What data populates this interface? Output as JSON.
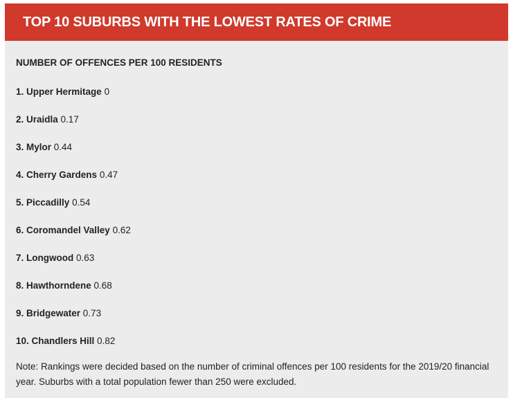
{
  "header": {
    "title": "TOP 10 SUBURBS WITH THE LOWEST RATES OF CRIME"
  },
  "subheading": "NUMBER OF OFFENCES PER 100 RESIDENTS",
  "items": [
    {
      "name": "1. Upper Hermitage",
      "value": "0"
    },
    {
      "name": "2. Uraidla",
      "value": "0.17"
    },
    {
      "name": "3. Mylor",
      "value": "0.44"
    },
    {
      "name": "4. Cherry Gardens",
      "value": "0.47"
    },
    {
      "name": "5. Piccadilly",
      "value": "0.54"
    },
    {
      "name": "6. Coromandel Valley",
      "value": "0.62"
    },
    {
      "name": "7. Longwood",
      "value": "0.63"
    },
    {
      "name": "8. Hawthorndene",
      "value": "0.68"
    },
    {
      "name": "9. Bridgewater",
      "value": "0.73"
    },
    {
      "name": "10. Chandlers Hill",
      "value": "0.82"
    }
  ],
  "note": "Note: Rankings were decided based on the number of criminal offences per 100 residents for the 2019/20 financial year. Suburbs with a total population fewer than 250 were excluded.",
  "colors": {
    "header_background": "#d0392b",
    "card_background": "#ececec",
    "header_text": "#ffffff"
  }
}
